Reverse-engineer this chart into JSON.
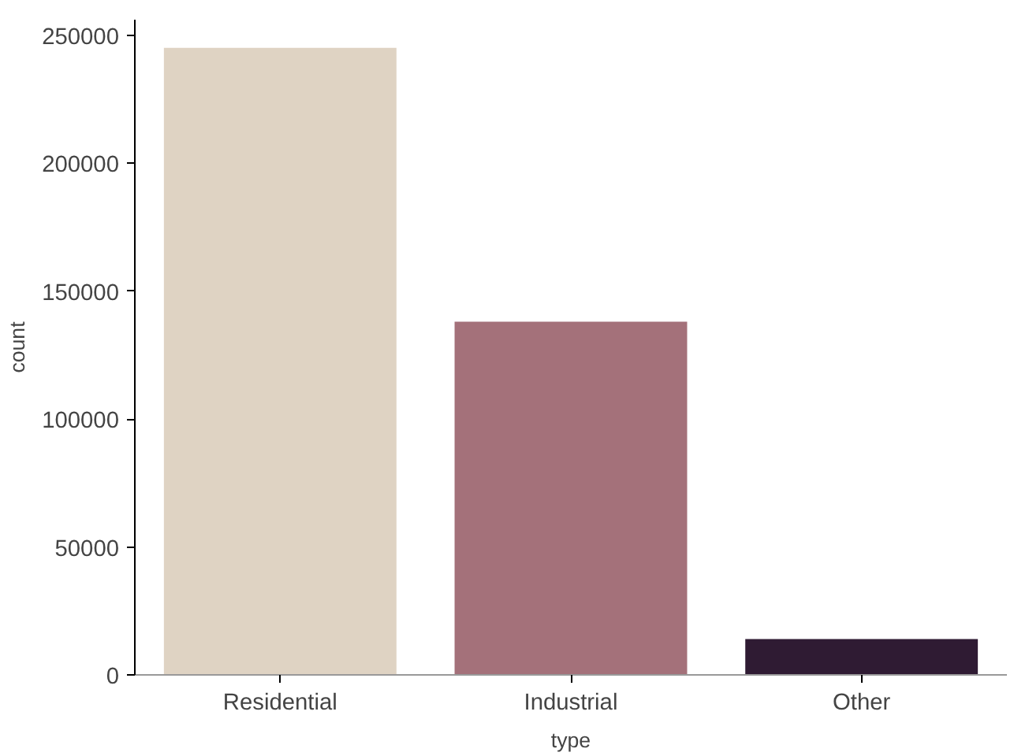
{
  "chart_data": {
    "type": "bar",
    "xlabel": "type",
    "ylabel": "count",
    "categories": [
      "Residential",
      "Industrial",
      "Other"
    ],
    "values": [
      245000,
      138000,
      14000
    ],
    "colors": [
      "#dfd3c3",
      "#a4717a",
      "#2f1b33"
    ],
    "ylim": [
      0,
      256000
    ],
    "yticks": [
      0,
      50000,
      100000,
      150000,
      200000,
      250000
    ],
    "grid": false
  }
}
